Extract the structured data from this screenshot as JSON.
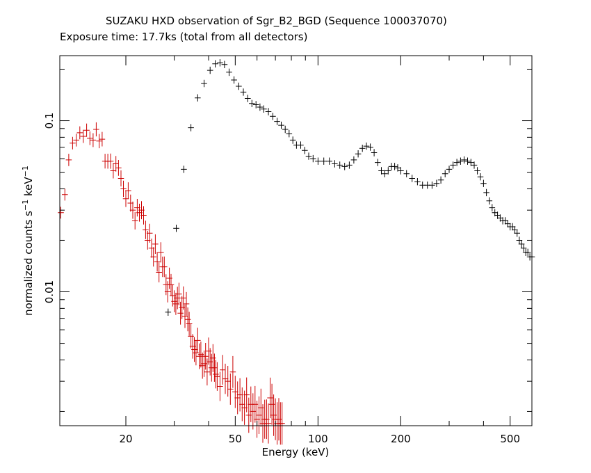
{
  "chart_data": {
    "type": "scatter",
    "title": "SUZAKU HXD observation of Sgr_B2_BGD (Sequence 100037070)",
    "subtitle": "Exposure time: 17.7ks (total from all detectors)",
    "xlabel": "Energy (keV)",
    "ylabel_main": "normalized counts s",
    "ylabel_sup1": "−1",
    "ylabel_unit": " keV",
    "ylabel_sup2": "−1",
    "x_scale": "log",
    "y_scale": "log",
    "xlim": [
      11.5,
      600
    ],
    "ylim": [
      0.00165,
      0.24
    ],
    "x_ticks": [
      {
        "value": 20,
        "label": "20"
      },
      {
        "value": 50,
        "label": "50"
      },
      {
        "value": 100,
        "label": "100"
      },
      {
        "value": 200,
        "label": "200"
      },
      {
        "value": 500,
        "label": "500"
      }
    ],
    "y_ticks": [
      {
        "value": 0.01,
        "label": "0.01"
      },
      {
        "value": 0.1,
        "label": "0.1"
      }
    ],
    "grid": false,
    "legend": "none",
    "series": [
      {
        "color": "#000000",
        "points": [
          [
            28.5,
            0.0076
          ],
          [
            30.5,
            0.0235
          ],
          [
            32.5,
            0.052
          ],
          [
            34.5,
            0.091
          ],
          [
            36.5,
            0.136
          ],
          [
            38.5,
            0.165
          ],
          [
            40.5,
            0.197
          ],
          [
            42.3,
            0.215
          ],
          [
            44.0,
            0.218
          ],
          [
            45.7,
            0.213
          ],
          [
            47.5,
            0.192
          ],
          [
            49.5,
            0.173
          ],
          [
            51.5,
            0.159
          ],
          [
            53.5,
            0.147
          ],
          [
            55.5,
            0.135
          ],
          [
            57.5,
            0.126
          ],
          [
            59.5,
            0.124
          ],
          [
            61.5,
            0.12
          ],
          [
            63.5,
            0.117
          ],
          [
            66.0,
            0.113
          ],
          [
            68.5,
            0.106
          ],
          [
            71.0,
            0.099
          ],
          [
            73.5,
            0.094
          ],
          [
            76.0,
            0.089
          ],
          [
            78.5,
            0.084
          ],
          [
            81.0,
            0.077
          ],
          [
            83.5,
            0.072
          ],
          [
            86.5,
            0.072
          ],
          [
            89.5,
            0.067
          ],
          [
            92.5,
            0.062
          ],
          [
            96.0,
            0.06
          ],
          [
            100.0,
            0.058
          ],
          [
            105.0,
            0.058
          ],
          [
            110.0,
            0.058
          ],
          [
            115.0,
            0.056
          ],
          [
            120.0,
            0.055
          ],
          [
            125.0,
            0.054
          ],
          [
            130.0,
            0.055
          ],
          [
            135.0,
            0.059
          ],
          [
            140.0,
            0.064
          ],
          [
            145.0,
            0.069
          ],
          [
            150.0,
            0.071
          ],
          [
            155.0,
            0.07
          ],
          [
            160.0,
            0.065
          ],
          [
            165.0,
            0.057
          ],
          [
            170.0,
            0.051
          ],
          [
            175.0,
            0.049
          ],
          [
            180.0,
            0.051
          ],
          [
            185.0,
            0.054
          ],
          [
            190.0,
            0.054
          ],
          [
            195.0,
            0.053
          ],
          [
            200.0,
            0.051
          ],
          [
            210.0,
            0.049
          ],
          [
            220.0,
            0.046
          ],
          [
            230.0,
            0.044
          ],
          [
            240.0,
            0.042
          ],
          [
            250.0,
            0.042
          ],
          [
            260.0,
            0.042
          ],
          [
            270.0,
            0.043
          ],
          [
            280.0,
            0.045
          ],
          [
            290.0,
            0.049
          ],
          [
            300.0,
            0.052
          ],
          [
            310.0,
            0.055
          ],
          [
            320.0,
            0.057
          ],
          [
            330.0,
            0.058
          ],
          [
            340.0,
            0.059
          ],
          [
            350.0,
            0.058
          ],
          [
            360.0,
            0.057
          ],
          [
            370.0,
            0.055
          ],
          [
            380.0,
            0.051
          ],
          [
            390.0,
            0.047
          ],
          [
            400.0,
            0.043
          ],
          [
            410.0,
            0.038
          ],
          [
            420.0,
            0.034
          ],
          [
            430.0,
            0.031
          ],
          [
            440.0,
            0.029
          ],
          [
            450.0,
            0.028
          ],
          [
            460.0,
            0.027
          ],
          [
            470.0,
            0.026
          ],
          [
            480.0,
            0.026
          ],
          [
            490.0,
            0.025
          ],
          [
            500.0,
            0.024
          ],
          [
            510.0,
            0.024
          ],
          [
            520.0,
            0.023
          ],
          [
            530.0,
            0.022
          ],
          [
            540.0,
            0.02
          ],
          [
            550.0,
            0.019
          ],
          [
            560.0,
            0.018
          ],
          [
            570.0,
            0.017
          ],
          [
            580.0,
            0.017
          ],
          [
            590.0,
            0.016
          ],
          [
            600.0,
            0.016
          ]
        ]
      },
      {
        "color": "#cc0000",
        "points": [
          [
            11.6,
            0.029
          ],
          [
            12.0,
            0.037
          ],
          [
            12.4,
            0.059
          ],
          [
            12.8,
            0.074
          ],
          [
            13.2,
            0.077
          ],
          [
            13.6,
            0.085
          ],
          [
            14.0,
            0.081
          ],
          [
            14.4,
            0.088
          ],
          [
            14.8,
            0.079
          ],
          [
            15.2,
            0.077
          ],
          [
            15.6,
            0.089
          ],
          [
            16.0,
            0.076
          ],
          [
            16.4,
            0.078
          ],
          [
            16.8,
            0.058
          ],
          [
            17.2,
            0.058
          ],
          [
            17.6,
            0.058
          ],
          [
            18.0,
            0.051
          ],
          [
            18.4,
            0.056
          ],
          [
            18.8,
            0.053
          ],
          [
            19.2,
            0.046
          ],
          [
            19.6,
            0.04
          ],
          [
            20.0,
            0.035
          ],
          [
            20.4,
            0.039
          ],
          [
            20.8,
            0.033
          ],
          [
            21.2,
            0.03
          ],
          [
            21.6,
            0.026
          ],
          [
            22.0,
            0.031
          ],
          [
            22.4,
            0.029
          ],
          [
            22.8,
            0.03
          ],
          [
            23.2,
            0.028
          ],
          [
            23.6,
            0.023
          ],
          [
            24.0,
            0.02
          ],
          [
            24.4,
            0.022
          ],
          [
            24.8,
            0.018
          ],
          [
            25.2,
            0.016
          ],
          [
            25.6,
            0.019
          ],
          [
            26.0,
            0.015
          ],
          [
            26.4,
            0.013
          ],
          [
            26.8,
            0.017
          ],
          [
            27.2,
            0.014
          ],
          [
            27.6,
            0.014
          ],
          [
            28.0,
            0.011
          ],
          [
            28.4,
            0.01
          ],
          [
            28.8,
            0.012
          ],
          [
            29.2,
            0.011
          ],
          [
            29.6,
            0.0095
          ],
          [
            30.0,
            0.0088
          ],
          [
            30.4,
            0.0085
          ],
          [
            30.8,
            0.0092
          ],
          [
            31.2,
            0.0097
          ],
          [
            31.6,
            0.0075
          ],
          [
            32.0,
            0.0081
          ],
          [
            32.4,
            0.0092
          ],
          [
            32.8,
            0.0072
          ],
          [
            33.2,
            0.0085
          ],
          [
            33.6,
            0.0069
          ],
          [
            34.0,
            0.0065
          ],
          [
            34.5,
            0.0055
          ],
          [
            35.0,
            0.0048
          ],
          [
            35.5,
            0.0046
          ],
          [
            36.0,
            0.0044
          ],
          [
            36.5,
            0.0052
          ],
          [
            37.0,
            0.0042
          ],
          [
            37.5,
            0.0043
          ],
          [
            38.0,
            0.0037
          ],
          [
            38.5,
            0.0038
          ],
          [
            39.0,
            0.0042
          ],
          [
            39.5,
            0.0034
          ],
          [
            40.0,
            0.0045
          ],
          [
            40.5,
            0.0039
          ],
          [
            41.0,
            0.0036
          ],
          [
            41.5,
            0.0041
          ],
          [
            42.0,
            0.0036
          ],
          [
            42.5,
            0.0033
          ],
          [
            43.0,
            0.0032
          ],
          [
            44.0,
            0.0028
          ],
          [
            45.0,
            0.0035
          ],
          [
            46.0,
            0.0031
          ],
          [
            47.0,
            0.003
          ],
          [
            48.0,
            0.0027
          ],
          [
            49.0,
            0.0034
          ],
          [
            50.0,
            0.0026
          ],
          [
            51.0,
            0.0024
          ],
          [
            52.0,
            0.0025
          ],
          [
            53.0,
            0.0022
          ],
          [
            54.0,
            0.0021
          ],
          [
            55.0,
            0.0025
          ],
          [
            56.0,
            0.0019
          ],
          [
            57.0,
            0.0022
          ],
          [
            58.0,
            0.002
          ],
          [
            59.0,
            0.0022
          ],
          [
            60.0,
            0.0018
          ],
          [
            61.0,
            0.0019
          ],
          [
            62.0,
            0.0021
          ],
          [
            63.0,
            0.0017
          ],
          [
            64.0,
            0.0018
          ],
          [
            65.0,
            0.0018
          ],
          [
            66.0,
            0.0017
          ],
          [
            67.0,
            0.0024
          ],
          [
            68.0,
            0.0022
          ],
          [
            69.0,
            0.0019
          ],
          [
            70.0,
            0.0018
          ],
          [
            71.0,
            0.0017
          ],
          [
            72.0,
            0.0018
          ],
          [
            73.0,
            0.0017
          ],
          [
            74.0,
            0.0017
          ]
        ]
      }
    ]
  }
}
